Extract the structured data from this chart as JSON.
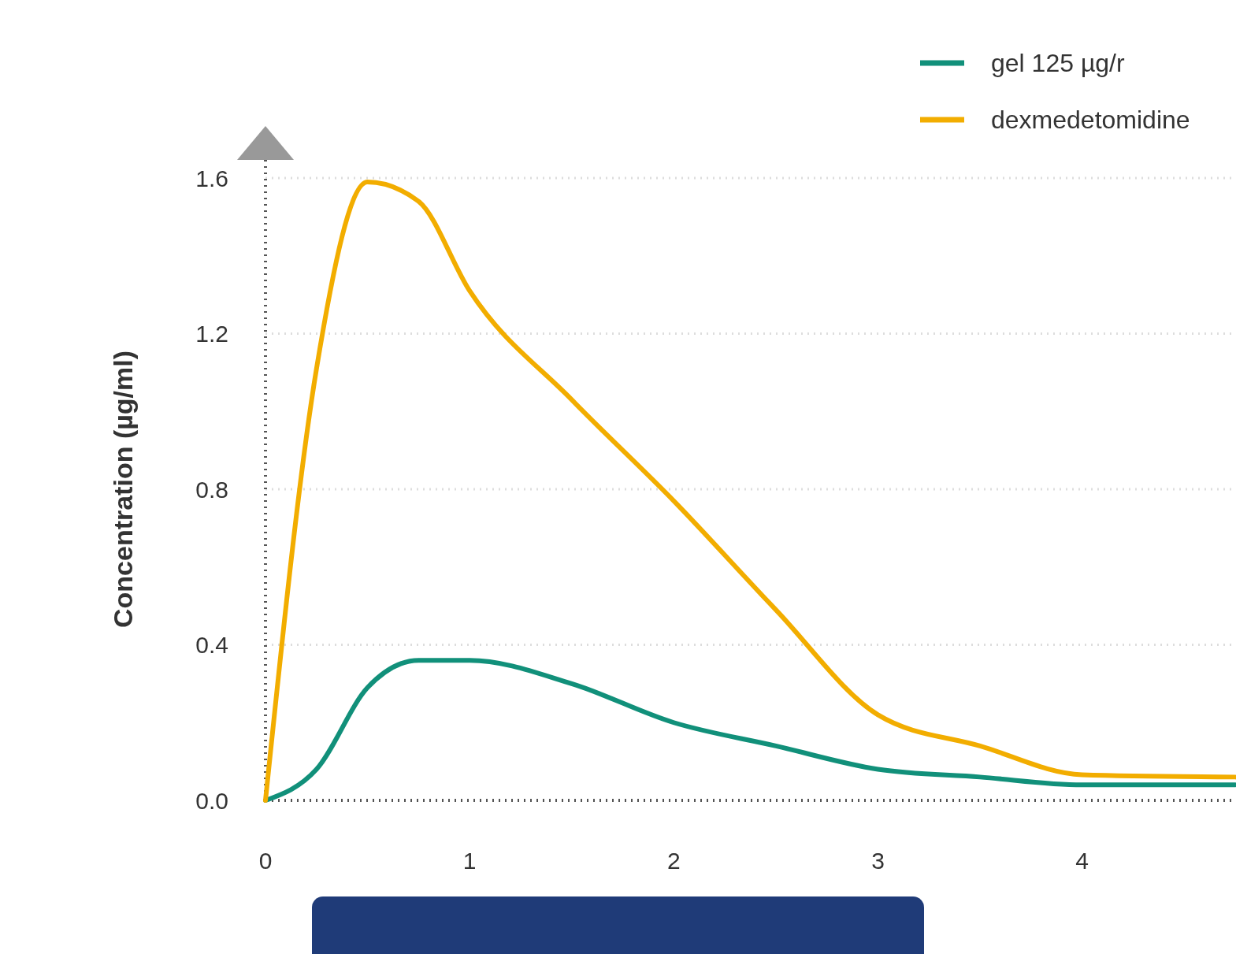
{
  "chart_data": {
    "type": "line",
    "ylabel": "Concentration  (µg/ml)",
    "xlim": [
      0,
      4.75
    ],
    "xticks": [
      0,
      1,
      2,
      3,
      4
    ],
    "ylim": [
      0,
      1.6
    ],
    "yticks": [
      {
        "value": 0,
        "label": "0.0"
      },
      {
        "value": 0.4,
        "label": "0.4"
      },
      {
        "value": 0.8,
        "label": "0.8"
      },
      {
        "value": 1.2,
        "label": "1.2"
      },
      {
        "value": 1.6,
        "label": "1.6"
      }
    ],
    "grid": "y",
    "legend": "top right",
    "line_style": "solid",
    "x": [
      0,
      0.25,
      0.5,
      0.75,
      1,
      1.5,
      2,
      2.5,
      3,
      3.5,
      4,
      4.75
    ],
    "series": [
      {
        "name": "gel 125 µg/r",
        "color": "#11907a",
        "values": [
          0,
          0.08,
          0.29,
          0.36,
          0.36,
          0.3,
          0.2,
          0.14,
          0.08,
          0.06,
          0.04,
          0.04
        ]
      },
      {
        "name": "dexmedetomidine",
        "color": "#f2ad00",
        "values": [
          0,
          1.11,
          1.59,
          1.54,
          1.31,
          1.03,
          0.77,
          0.49,
          0.22,
          0.14,
          0.066,
          0.06
        ]
      }
    ]
  }
}
